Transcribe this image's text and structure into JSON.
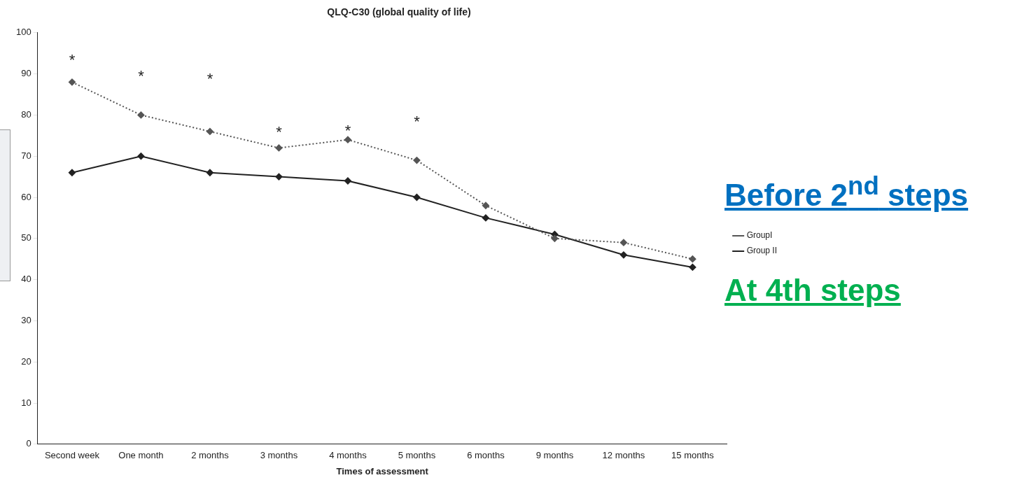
{
  "chart_data": {
    "type": "line",
    "title": "QLQ-C30 (global quality of life)",
    "xlabel": "Times of assessment",
    "categories": [
      "Second week",
      "One month",
      "2 months",
      "3 months",
      "4 months",
      "5 months",
      "6 months",
      "9 months",
      "12 months",
      "15 months"
    ],
    "series": [
      {
        "name": "GroupI",
        "color": "#555555",
        "line_style": "dotted",
        "values": [
          88,
          80,
          76,
          72,
          74,
          69,
          58,
          50,
          49,
          45
        ]
      },
      {
        "name": "Group II",
        "color": "#222222",
        "line_style": "solid",
        "values": [
          66,
          70,
          66,
          65,
          64,
          60,
          55,
          51,
          46,
          43
        ]
      }
    ],
    "ylim": [
      0,
      100
    ],
    "yticks": [
      0,
      10,
      20,
      30,
      40,
      50,
      60,
      70,
      80,
      90,
      100
    ],
    "grid": false,
    "legend": "right",
    "marker": "diamond",
    "annotations": [
      "*",
      "*",
      "*",
      "*",
      "*",
      "*",
      "Before 2$^{nd}$ steps",
      "At 4th steps"
    ]
  }
}
